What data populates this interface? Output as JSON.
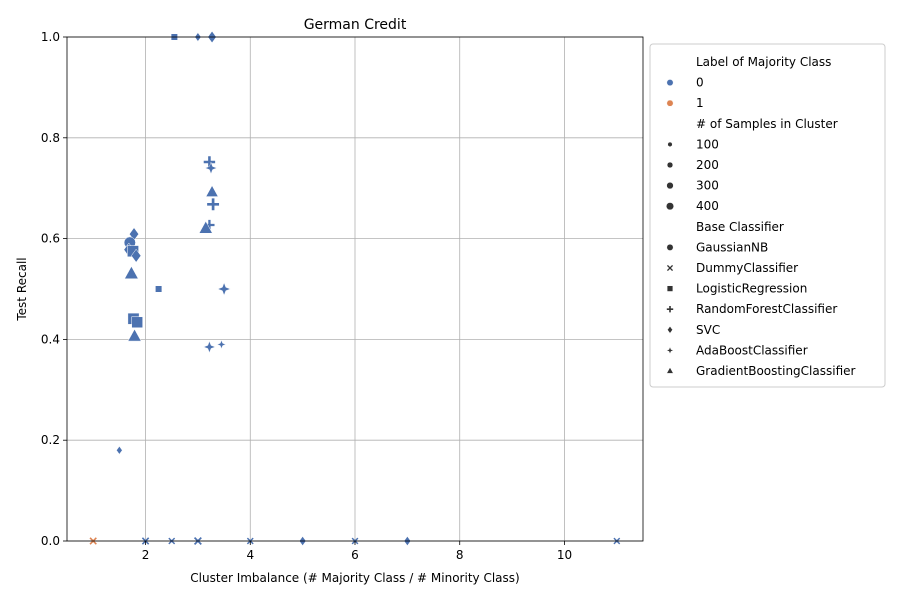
{
  "chart_data": {
    "type": "scatter",
    "title": "German Credit",
    "xlabel": "Cluster Imbalance (# Majority Class / # Minority Class)",
    "ylabel": "Test Recall",
    "xlim": [
      0.5,
      11.5
    ],
    "ylim": [
      0,
      1.0
    ],
    "xticks": [
      2,
      4,
      6,
      8,
      10
    ],
    "yticks": [
      0.0,
      0.2,
      0.4,
      0.6,
      0.8,
      1.0
    ],
    "xtick_labels": [
      "2",
      "4",
      "6",
      "8",
      "10"
    ],
    "ytick_labels": [
      "0.0",
      "0.2",
      "0.4",
      "0.6",
      "0.8",
      "1.0"
    ],
    "grid": true,
    "colors": {
      "0": "#4c72b0",
      "1": "#dd8452"
    },
    "legend": {
      "placement": "outside-right",
      "hue_title": "Label of Majority Class",
      "hue_entries": [
        {
          "label": "0",
          "color": "#4c72b0"
        },
        {
          "label": "1",
          "color": "#dd8452"
        }
      ],
      "size_title": "# of Samples in Cluster",
      "size_entries": [
        {
          "label": "100",
          "size": 100
        },
        {
          "label": "200",
          "size": 200
        },
        {
          "label": "300",
          "size": 300
        },
        {
          "label": "400",
          "size": 400
        }
      ],
      "style_title": "Base Classifier",
      "style_entries": [
        {
          "label": "GaussianNB",
          "marker": "circle"
        },
        {
          "label": "DummyClassifier",
          "marker": "x"
        },
        {
          "label": "LogisticRegression",
          "marker": "square"
        },
        {
          "label": "RandomForestClassifier",
          "marker": "plus"
        },
        {
          "label": "SVC",
          "marker": "diamond"
        },
        {
          "label": "AdaBoostClassifier",
          "marker": "star4"
        },
        {
          "label": "GradientBoostingClassifier",
          "marker": "triangle"
        }
      ]
    },
    "points": [
      {
        "x": 1.0,
        "y": 0.0,
        "hue": "1",
        "size": 80,
        "marker": "x"
      },
      {
        "x": 2.0,
        "y": 0.0,
        "hue": "0",
        "size": 80,
        "marker": "x"
      },
      {
        "x": 2.5,
        "y": 0.0,
        "hue": "0",
        "size": 60,
        "marker": "x"
      },
      {
        "x": 3.0,
        "y": 0.0,
        "hue": "0",
        "size": 100,
        "marker": "x"
      },
      {
        "x": 4.0,
        "y": 0.0,
        "hue": "0",
        "size": 60,
        "marker": "x"
      },
      {
        "x": 5.0,
        "y": 0.0,
        "hue": "0",
        "size": 100,
        "marker": "diamond"
      },
      {
        "x": 6.0,
        "y": 0.0,
        "hue": "0",
        "size": 60,
        "marker": "x"
      },
      {
        "x": 7.0,
        "y": 0.0,
        "hue": "0",
        "size": 100,
        "marker": "diamond"
      },
      {
        "x": 11.0,
        "y": 0.0,
        "hue": "0",
        "size": 60,
        "marker": "x"
      },
      {
        "x": 1.5,
        "y": 0.18,
        "hue": "0",
        "size": 60,
        "marker": "diamond"
      },
      {
        "x": 2.55,
        "y": 1.0,
        "hue": "0",
        "size": 60,
        "marker": "square"
      },
      {
        "x": 3.0,
        "y": 1.0,
        "hue": "0",
        "size": 80,
        "marker": "diamond"
      },
      {
        "x": 3.27,
        "y": 1.0,
        "hue": "0",
        "size": 200,
        "marker": "diamond"
      },
      {
        "x": 3.22,
        "y": 0.752,
        "hue": "0",
        "size": 250,
        "marker": "plus"
      },
      {
        "x": 3.25,
        "y": 0.74,
        "hue": "0",
        "size": 200,
        "marker": "star4"
      },
      {
        "x": 3.27,
        "y": 0.692,
        "hue": "0",
        "size": 260,
        "marker": "triangle"
      },
      {
        "x": 3.29,
        "y": 0.668,
        "hue": "0",
        "size": 280,
        "marker": "plus"
      },
      {
        "x": 3.22,
        "y": 0.627,
        "hue": "0",
        "size": 180,
        "marker": "plus"
      },
      {
        "x": 3.15,
        "y": 0.62,
        "hue": "0",
        "size": 330,
        "marker": "triangle"
      },
      {
        "x": 3.5,
        "y": 0.5,
        "hue": "0",
        "size": 250,
        "marker": "star4"
      },
      {
        "x": 3.22,
        "y": 0.385,
        "hue": "0",
        "size": 200,
        "marker": "star4"
      },
      {
        "x": 3.45,
        "y": 0.39,
        "hue": "0",
        "size": 80,
        "marker": "star4"
      },
      {
        "x": 2.25,
        "y": 0.5,
        "hue": "0",
        "size": 60,
        "marker": "square"
      },
      {
        "x": 1.78,
        "y": 0.609,
        "hue": "0",
        "size": 260,
        "marker": "diamond"
      },
      {
        "x": 1.7,
        "y": 0.592,
        "hue": "0",
        "size": 250,
        "marker": "circle"
      },
      {
        "x": 1.68,
        "y": 0.578,
        "hue": "0",
        "size": 300,
        "marker": "diamond"
      },
      {
        "x": 1.76,
        "y": 0.575,
        "hue": "0",
        "size": 320,
        "marker": "square"
      },
      {
        "x": 1.82,
        "y": 0.566,
        "hue": "0",
        "size": 280,
        "marker": "diamond"
      },
      {
        "x": 1.73,
        "y": 0.53,
        "hue": "0",
        "size": 360,
        "marker": "triangle"
      },
      {
        "x": 1.77,
        "y": 0.441,
        "hue": "0",
        "size": 320,
        "marker": "square"
      },
      {
        "x": 1.84,
        "y": 0.434,
        "hue": "0",
        "size": 300,
        "marker": "square"
      },
      {
        "x": 1.79,
        "y": 0.406,
        "hue": "0",
        "size": 320,
        "marker": "triangle"
      }
    ]
  }
}
